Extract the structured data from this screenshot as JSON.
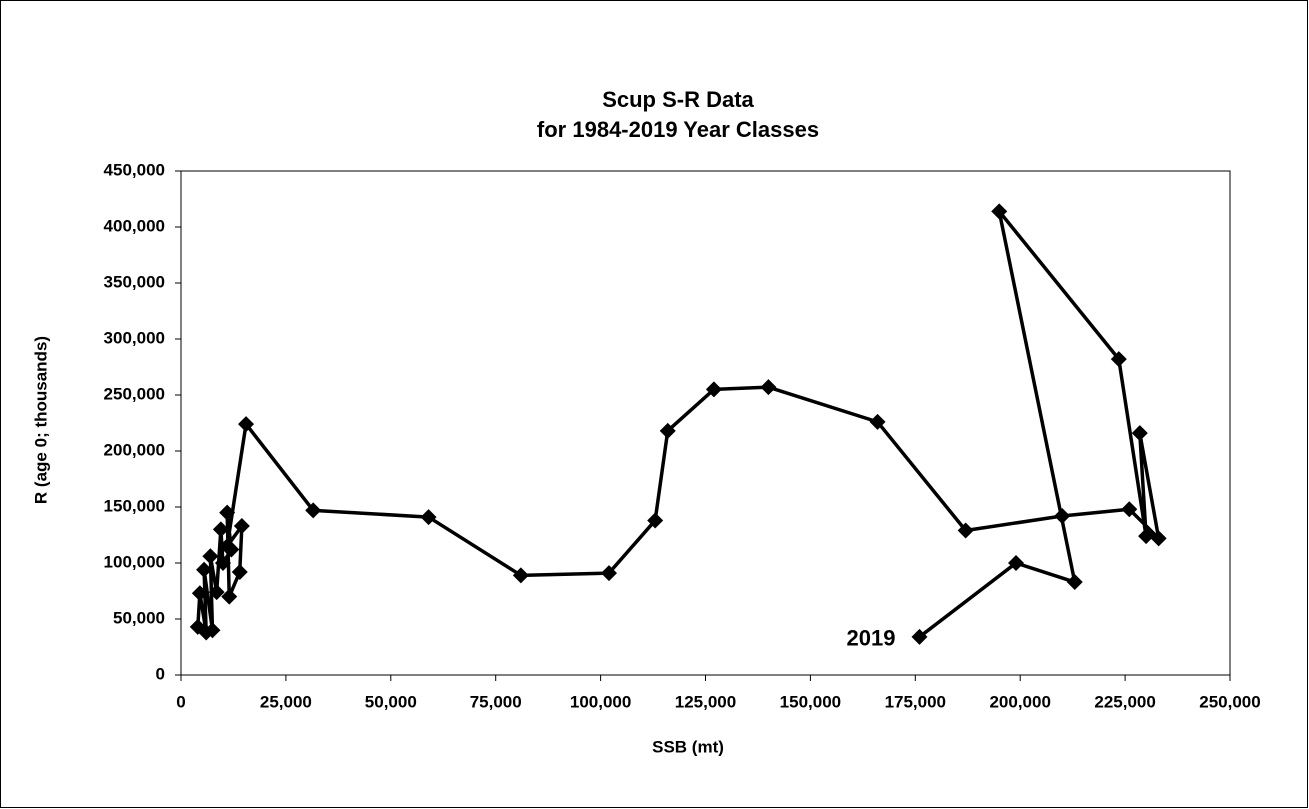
{
  "chart_data": {
    "type": "line",
    "title": [
      "Scup S-R Data",
      "for 1984-2019 Year Classes"
    ],
    "x_label": "SSB (mt)",
    "y_label": "R (age 0; thousands)",
    "annotation": "2019",
    "color": "#000000",
    "x": [
      4000,
      4500,
      6000,
      5500,
      7500,
      7000,
      8500,
      9500,
      10000,
      12000,
      11000,
      11500,
      14000,
      14500,
      11000,
      15500,
      31500,
      59000,
      81000,
      102000,
      113000,
      116000,
      127000,
      140000,
      166000,
      187000,
      210000,
      226000,
      233000,
      228500,
      230000,
      223500,
      195000,
      213000,
      199000,
      176000
    ],
    "values": [
      43000,
      73000,
      38000,
      94000,
      40000,
      106000,
      74000,
      130000,
      100000,
      112000,
      145000,
      70000,
      92000,
      133000,
      115000,
      224000,
      147000,
      141000,
      89000,
      91000,
      138000,
      218000,
      255000,
      257000,
      226000,
      129000,
      142000,
      148000,
      122000,
      216000,
      124000,
      282000,
      414000,
      83000,
      100000,
      34000
    ],
    "xlim": [
      0,
      250000
    ],
    "xticks": [
      0,
      {
        "value": 25000,
        "label": "25,000"
      },
      {
        "value": 50000,
        "label": "50,000"
      },
      {
        "value": 75000,
        "label": "75,000"
      },
      {
        "value": 100000,
        "label": "100,000"
      },
      {
        "value": 125000,
        "label": "125,000"
      },
      {
        "value": 150000,
        "label": "150,000"
      },
      {
        "value": 175000,
        "label": "175,000"
      },
      {
        "value": 200000,
        "label": "200,000"
      },
      {
        "value": 225000,
        "label": "225,000"
      },
      {
        "value": 250000,
        "label": "250,000"
      }
    ],
    "ylim": [
      0,
      450000
    ],
    "yticks": [
      0,
      {
        "value": 50000,
        "label": "50,000"
      },
      {
        "value": 100000,
        "label": "100,000"
      },
      {
        "value": 150000,
        "label": "150,000"
      },
      {
        "value": 200000,
        "label": "200,000"
      },
      {
        "value": 250000,
        "label": "250,000"
      },
      {
        "value": 300000,
        "label": "300,000"
      },
      {
        "value": 350000,
        "label": "350,000"
      },
      {
        "value": 400000,
        "label": "400,000"
      },
      {
        "value": 450000,
        "label": "450,000"
      }
    ]
  }
}
